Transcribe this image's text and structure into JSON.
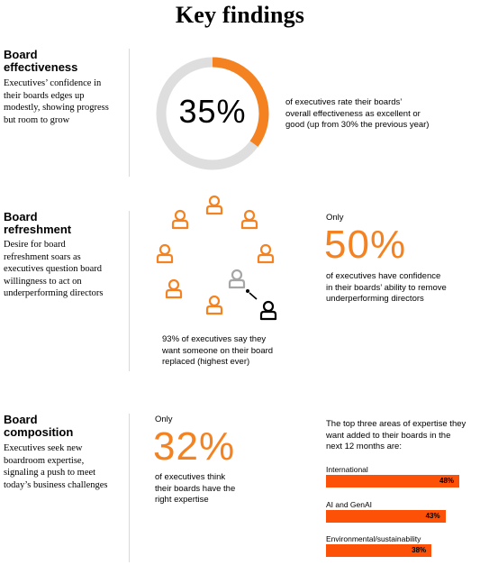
{
  "page_title": "Key findings",
  "colors": {
    "accent": "#fd5108",
    "orange_text": "#f58220",
    "ring_track": "#dedede"
  },
  "sections": [
    {
      "heading": [
        "Board",
        "effectiveness"
      ],
      "desc": [
        "Executives’ confidence in",
        "their boards edges up",
        "modestly, showing progress",
        "but room to grow"
      ],
      "stat_value": "35%",
      "stat_fraction": 0.35,
      "stat_text": [
        "of executives rate their boards’",
        "overall effectiveness as excellent or",
        "good (up from 30% the previous year)"
      ]
    },
    {
      "heading": [
        "Board",
        "refreshment"
      ],
      "desc": [
        "Desire for board",
        "refreshment soars as",
        "executives question board",
        "willingness to act on",
        "underperforming directors"
      ],
      "icons": [
        "person-icon"
      ],
      "caption": [
        "93% of executives say they",
        "want someone on their board",
        "replaced (highest ever)"
      ],
      "only_label": "Only",
      "stat_value": "50%",
      "stat_text": [
        "of executives have confidence",
        "in their boards’ ability to remove",
        "underperforming directors"
      ]
    },
    {
      "heading": [
        "Board",
        "composition"
      ],
      "desc": [
        "Executives seek new",
        "boardroom expertise,",
        "signaling a push to meet",
        "today’s business challenges"
      ],
      "only_label": "Only",
      "stat_value": "32%",
      "stat_text": [
        "of executives think",
        "their boards have the",
        "right expertise"
      ],
      "bars_title": [
        "The top three areas of expertise they",
        "want added to their boards in the",
        "next 12 months are:"
      ],
      "bars": [
        {
          "label": "International",
          "value": 48,
          "display": "48%"
        },
        {
          "label": "AI and GenAI",
          "value": 43,
          "display": "43%"
        },
        {
          "label": "Environmental/sustainability",
          "value": 38,
          "display": "38%"
        }
      ]
    }
  ]
}
